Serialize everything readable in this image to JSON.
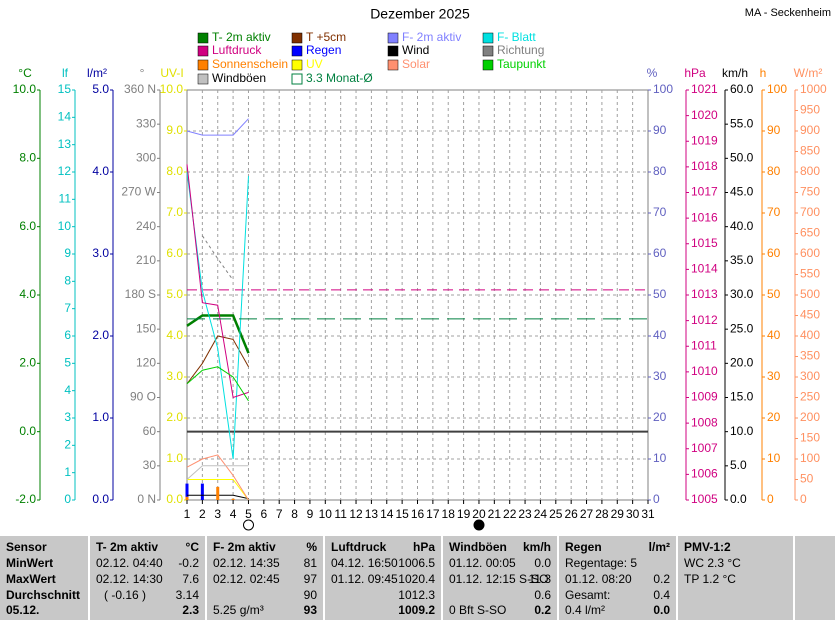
{
  "chart_data": {
    "type": "line",
    "title": "Dezember 2025",
    "station": "MA - Seckenheim",
    "categories": [
      1,
      2,
      3,
      4,
      5,
      6,
      7,
      8,
      9,
      10,
      11,
      12,
      13,
      14,
      15,
      16,
      17,
      18,
      19,
      20,
      21,
      22,
      23,
      24,
      25,
      26,
      27,
      28,
      29,
      30,
      31
    ],
    "grid": true,
    "axes": [
      {
        "label": "°C",
        "color": "#008000",
        "side": "left",
        "ylim": [
          -2,
          10
        ],
        "yticks": [
          {
            "value": -2,
            "label": "-2.0"
          },
          {
            "value": 0,
            "label": "0.0"
          },
          {
            "value": 2,
            "label": "2.0"
          },
          {
            "value": 4,
            "label": "4.0"
          },
          {
            "value": 6,
            "label": "6.0"
          },
          {
            "value": 8,
            "label": "8.0"
          },
          {
            "value": 10,
            "label": "10.0"
          }
        ]
      },
      {
        "label": "lf",
        "color": "#00c0c0",
        "side": "left",
        "ylim": [
          0,
          15
        ],
        "yticks": [
          0,
          1,
          2,
          3,
          4,
          5,
          6,
          7,
          8,
          9,
          10,
          11,
          12,
          13,
          14,
          15
        ]
      },
      {
        "label": "l/m²",
        "color": "#0000a0",
        "side": "left",
        "ylim": [
          0,
          5
        ],
        "yticks": [
          {
            "value": 0,
            "label": "0.0"
          },
          {
            "value": 1,
            "label": "1.0"
          },
          {
            "value": 2,
            "label": "2.0"
          },
          {
            "value": 3,
            "label": "3.0"
          },
          {
            "value": 4,
            "label": "4.0"
          },
          {
            "value": 5,
            "label": "5.0"
          }
        ]
      },
      {
        "label": "°",
        "color": "#808080",
        "side": "left",
        "ylim": [
          0,
          360
        ],
        "yticks": [
          {
            "value": 0,
            "label": "0 N"
          },
          30,
          60,
          {
            "value": 90,
            "label": "90 O"
          },
          120,
          150,
          {
            "value": 180,
            "label": "180 S"
          },
          210,
          240,
          {
            "value": 270,
            "label": "270 W"
          },
          300,
          330,
          {
            "value": 360,
            "label": "360 N"
          }
        ]
      },
      {
        "label": "UV-I",
        "color": "#e0e000",
        "side": "left",
        "ylim": [
          0,
          10
        ],
        "yticks": [
          {
            "value": 0,
            "label": "0.0"
          },
          {
            "value": 1,
            "label": "1.0"
          },
          {
            "value": 2,
            "label": "2.0"
          },
          {
            "value": 3,
            "label": "3.0"
          },
          {
            "value": 4,
            "label": "4.0"
          },
          {
            "value": 5,
            "label": "5.0"
          },
          {
            "value": 6,
            "label": "6.0"
          },
          {
            "value": 7,
            "label": "7.0"
          },
          {
            "value": 8,
            "label": "8.0"
          },
          {
            "value": 9,
            "label": "9.0"
          },
          {
            "value": 10,
            "label": "10.0"
          }
        ]
      },
      {
        "label": "%",
        "color": "#6060c0",
        "side": "right",
        "ylim": [
          0,
          100
        ],
        "yticks": [
          0,
          10,
          20,
          30,
          40,
          50,
          60,
          70,
          80,
          90,
          100
        ]
      },
      {
        "label": "hPa",
        "color": "#d00080",
        "side": "right",
        "ylim": [
          1005,
          1021
        ],
        "yticks": [
          1005,
          1006,
          1007,
          1008,
          1009,
          1010,
          1011,
          1012,
          1013,
          1014,
          1015,
          1016,
          1017,
          1018,
          1019,
          1020,
          1021
        ]
      },
      {
        "label": "km/h",
        "color": "#000000",
        "side": "right",
        "ylim": [
          0,
          60
        ],
        "yticks": [
          {
            "value": 0,
            "label": "0.0"
          },
          {
            "value": 5,
            "label": "5.0"
          },
          {
            "value": 10,
            "label": "10.0"
          },
          {
            "value": 15,
            "label": "15.0"
          },
          {
            "value": 20,
            "label": "20.0"
          },
          {
            "value": 25,
            "label": "25.0"
          },
          {
            "value": 30,
            "label": "30.0"
          },
          {
            "value": 35,
            "label": "35.0"
          },
          {
            "value": 40,
            "label": "40.0"
          },
          {
            "value": 45,
            "label": "45.0"
          },
          {
            "value": 50,
            "label": "50.0"
          },
          {
            "value": 55,
            "label": "55.0"
          },
          {
            "value": 60,
            "label": "60.0"
          }
        ]
      },
      {
        "label": "h",
        "color": "#ff8000",
        "side": "right",
        "ylim": [
          0,
          100
        ],
        "yticks": [
          0,
          10,
          20,
          30,
          40,
          50,
          60,
          70,
          80,
          90,
          100
        ]
      },
      {
        "label": "W/m²",
        "color": "#ff9060",
        "side": "right",
        "ylim": [
          0,
          1000
        ],
        "yticks": [
          0,
          50,
          100,
          150,
          200,
          250,
          300,
          350,
          400,
          450,
          500,
          550,
          600,
          650,
          700,
          750,
          800,
          850,
          900,
          950,
          1000
        ]
      }
    ],
    "series": [
      {
        "name": "T- 2m aktiv",
        "color": "#008000",
        "axis": "°C",
        "width": 2.5,
        "values": [
          3.1,
          3.4,
          3.4,
          3.4,
          2.3,
          null,
          null,
          null,
          null,
          null,
          null,
          null,
          null,
          null,
          null,
          null,
          null,
          null,
          null,
          null,
          null,
          null,
          null,
          null,
          null,
          null,
          null,
          null,
          null,
          null,
          null
        ]
      },
      {
        "name": "T +5cm",
        "color": "#803000",
        "axis": "°C",
        "values": [
          1.4,
          2.0,
          2.8,
          2.7,
          1.9,
          null,
          null,
          null,
          null,
          null,
          null,
          null,
          null,
          null,
          null,
          null,
          null,
          null,
          null,
          null,
          null,
          null,
          null,
          null,
          null,
          null,
          null,
          null,
          null,
          null,
          null
        ]
      },
      {
        "name": "F- 2m aktiv",
        "color": "#8080ff",
        "axis": "%",
        "values": [
          90,
          89,
          89,
          89,
          93,
          null,
          null,
          null,
          null,
          null,
          null,
          null,
          null,
          null,
          null,
          null,
          null,
          null,
          null,
          null,
          null,
          null,
          null,
          null,
          null,
          null,
          null,
          null,
          null,
          null,
          null
        ]
      },
      {
        "name": "F- Blatt",
        "color": "#00e0e0",
        "axis": "%",
        "values": [
          80,
          51,
          37,
          10,
          79,
          null,
          null,
          null,
          null,
          null,
          null,
          null,
          null,
          null,
          null,
          null,
          null,
          null,
          null,
          null,
          null,
          null,
          null,
          null,
          null,
          null,
          null,
          null,
          null,
          null,
          null
        ]
      },
      {
        "name": "Luftdruck",
        "color": "#d00080",
        "axis": "hPa",
        "values": [
          1018.1,
          1012.7,
          1012.6,
          1009.0,
          1009.2,
          null,
          null,
          null,
          null,
          null,
          null,
          null,
          null,
          null,
          null,
          null,
          null,
          null,
          null,
          null,
          null,
          null,
          null,
          null,
          null,
          null,
          null,
          null,
          null,
          null,
          null
        ]
      },
      {
        "name": "Regen",
        "color": "#0000ff",
        "axis": "l/m²",
        "type": "bar",
        "values": [
          0.2,
          0.2,
          0,
          0,
          0,
          null,
          null,
          null,
          null,
          null,
          null,
          null,
          null,
          null,
          null,
          null,
          null,
          null,
          null,
          null,
          null,
          null,
          null,
          null,
          null,
          null,
          null,
          null,
          null,
          null,
          null
        ]
      },
      {
        "name": "Wind",
        "color": "#000000",
        "axis": "km/h",
        "values": [
          0.7,
          0.7,
          0.7,
          0.7,
          0.2,
          null,
          null,
          null,
          null,
          null,
          null,
          null,
          null,
          null,
          null,
          null,
          null,
          null,
          null,
          null,
          null,
          null,
          null,
          null,
          null,
          null,
          null,
          null,
          null,
          null,
          null
        ]
      },
      {
        "name": "Richtung",
        "color": "#808080",
        "axis": "°",
        "dashed": true,
        "values": [
          null,
          232,
          212,
          193,
          null,
          null,
          null,
          null,
          null,
          null,
          null,
          null,
          null,
          null,
          null,
          null,
          null,
          null,
          null,
          null,
          null,
          null,
          null,
          null,
          null,
          null,
          null,
          null,
          null,
          null,
          null
        ]
      },
      {
        "name": "Sonnenschein",
        "color": "#ff8000",
        "axis": "h",
        "type": "bar",
        "values": [
          0.8,
          0,
          3.2,
          0.3,
          0,
          null,
          null,
          null,
          null,
          null,
          null,
          null,
          null,
          null,
          null,
          null,
          null,
          null,
          null,
          null,
          null,
          null,
          null,
          null,
          null,
          null,
          null,
          null,
          null,
          null,
          null
        ]
      },
      {
        "name": "UV",
        "color": "#ffff00",
        "axis": "UV-I",
        "values": [
          0.5,
          0.5,
          0.5,
          0.5,
          0,
          null,
          null,
          null,
          null,
          null,
          null,
          null,
          null,
          null,
          null,
          null,
          null,
          null,
          null,
          null,
          null,
          null,
          null,
          null,
          null,
          null,
          null,
          null,
          null,
          null,
          null
        ]
      },
      {
        "name": "Solar",
        "color": "#ff9070",
        "axis": "W/m²",
        "values": [
          80,
          100,
          110,
          60,
          0,
          null,
          null,
          null,
          null,
          null,
          null,
          null,
          null,
          null,
          null,
          null,
          null,
          null,
          null,
          null,
          null,
          null,
          null,
          null,
          null,
          null,
          null,
          null,
          null,
          null,
          null
        ]
      },
      {
        "name": "Taupunkt",
        "color": "#00d000",
        "axis": "°C",
        "values": [
          1.4,
          1.8,
          1.9,
          1.6,
          0.9,
          null,
          null,
          null,
          null,
          null,
          null,
          null,
          null,
          null,
          null,
          null,
          null,
          null,
          null,
          null,
          null,
          null,
          null,
          null,
          null,
          null,
          null,
          null,
          null,
          null,
          null
        ]
      },
      {
        "name": "Windböen",
        "color": "#c0c0c0",
        "axis": "km/h",
        "values": [
          3,
          5,
          5,
          5,
          5,
          null,
          null,
          null,
          null,
          null,
          null,
          null,
          null,
          null,
          null,
          null,
          null,
          null,
          null,
          null,
          null,
          null,
          null,
          null,
          null,
          null,
          null,
          null,
          null,
          null,
          null
        ]
      },
      {
        "name": "3.3 Monat-Ø",
        "color": "#008040",
        "axis": "°C",
        "value": 3.3
      }
    ],
    "reference_lines": [
      {
        "value": 1013.2,
        "axis": "hPa",
        "color": "#d00080"
      },
      {
        "value": 10,
        "axis": "km/h",
        "color": "#404040"
      }
    ]
  },
  "table": {
    "columns": [
      {
        "header": "Sensor",
        "rows": [
          "MinWert",
          "MaxWert",
          "Durchschnitt",
          "05.12."
        ]
      },
      {
        "header": "T- 2m aktiv",
        "unit": "°C",
        "rows": [
          [
            "02.12. 04:40",
            "-0.2"
          ],
          [
            "02.12. 14:30",
            "7.6"
          ],
          [
            "( -0.16 )",
            "3.14"
          ],
          [
            null,
            "2.3"
          ]
        ]
      },
      {
        "header": "F- 2m aktiv",
        "unit": "%",
        "rows": [
          [
            "02.12. 14:35",
            "81"
          ],
          [
            "02.12. 02:45",
            "97"
          ],
          [
            null,
            "90"
          ],
          [
            "5.25 g/m³",
            "93"
          ]
        ]
      },
      {
        "header": "Luftdruck",
        "unit": "hPa",
        "rows": [
          [
            "04.12. 16:50",
            "1006.5"
          ],
          [
            "01.12. 09:45",
            "1020.4"
          ],
          [
            null,
            "1012.3"
          ],
          [
            null,
            "1009.2"
          ]
        ]
      },
      {
        "header": "Windböen",
        "unit": "km/h",
        "rows": [
          [
            "01.12. 00:05",
            "0.0"
          ],
          [
            "01.12. 12:15 S-SO",
            "11.3"
          ],
          [
            null,
            "0.6"
          ],
          [
            "0 Bft S-SO",
            "0.2"
          ]
        ]
      },
      {
        "header": "Regen",
        "unit": "l/m²",
        "rows": [
          [
            "Regentage: 5",
            null
          ],
          [
            "01.12. 08:20",
            "0.2"
          ],
          [
            "Gesamt:",
            "0.4"
          ],
          [
            "0.4 l/m²",
            "0.0"
          ]
        ]
      },
      {
        "header": "PMV-1:2",
        "rows": [
          [
            "WC 2.3 °C",
            null
          ],
          [
            "TP 1.2 °C",
            null
          ],
          [
            null,
            null
          ],
          [
            null,
            null
          ]
        ]
      }
    ]
  }
}
